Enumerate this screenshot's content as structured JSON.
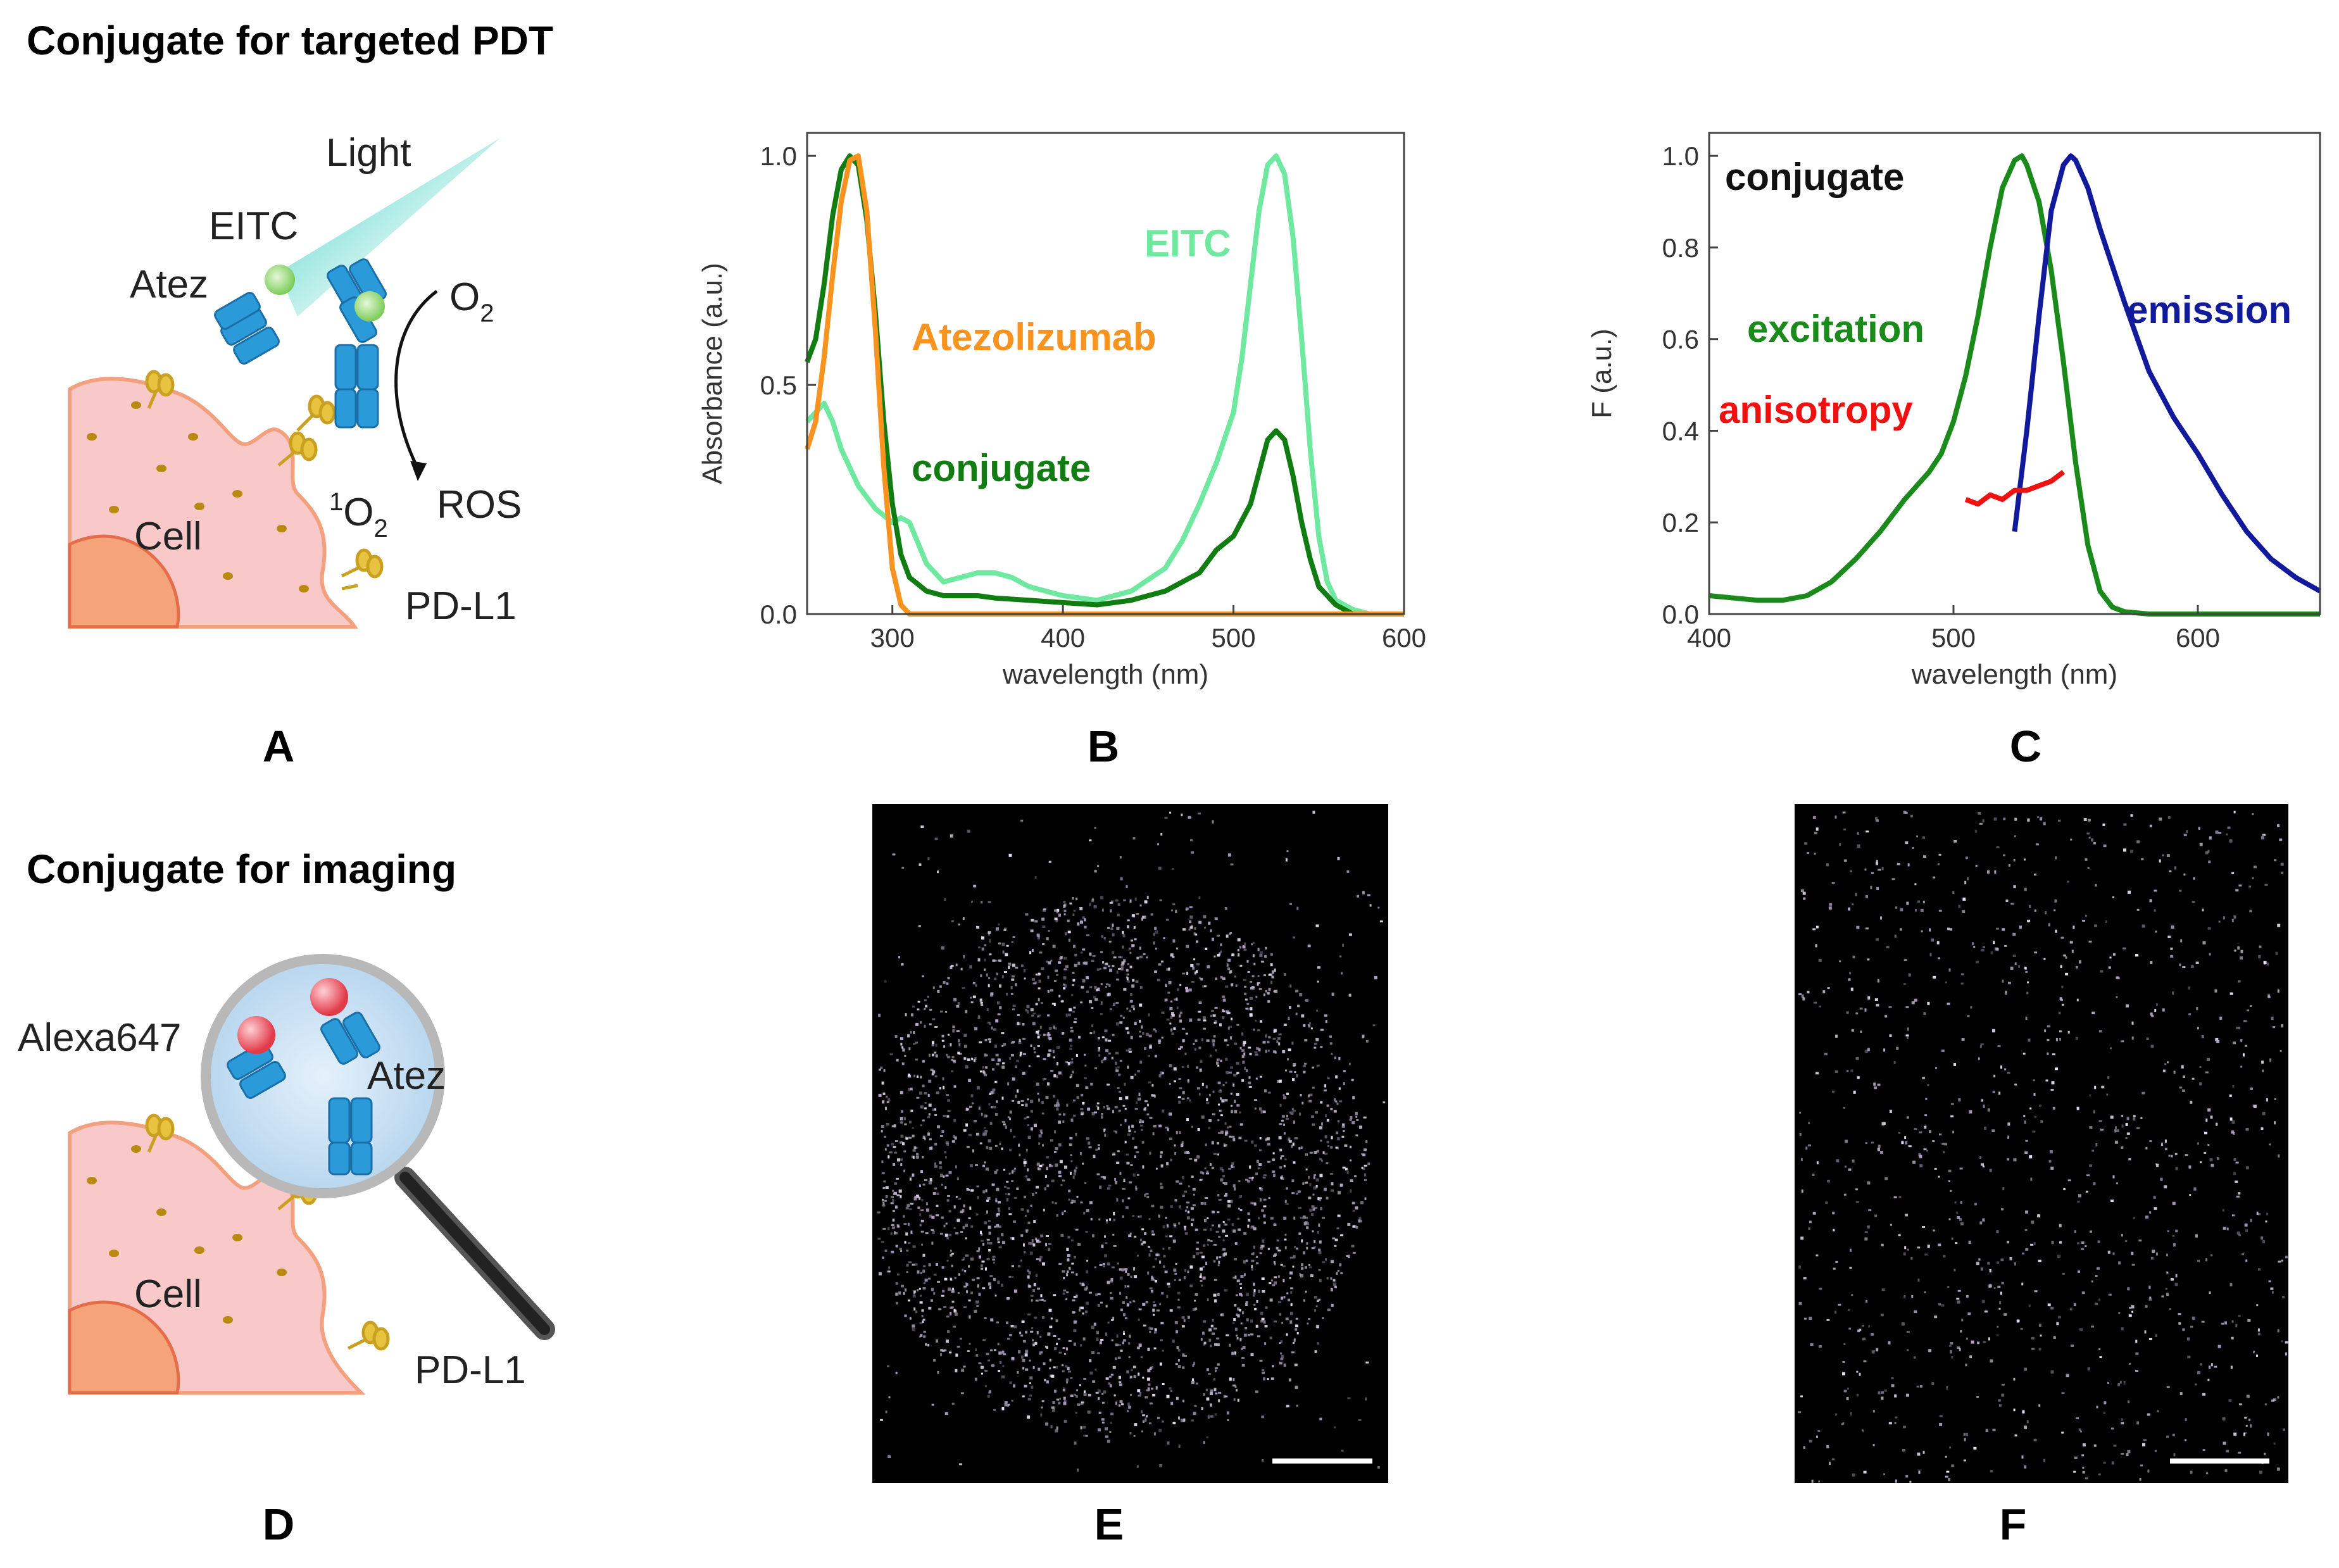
{
  "headings": {
    "top": "Conjugate for targeted PDT",
    "bottom": "Conjugate for imaging"
  },
  "panel_letters": {
    "A": "A",
    "B": "B",
    "C": "C",
    "D": "D",
    "E": "E",
    "F": "F"
  },
  "schematic_a": {
    "light": "Light",
    "eitc": "EITC",
    "atez": "Atez",
    "o2": "O",
    "o2_sub": "2",
    "singlet_sup": "1",
    "singlet_o": "O",
    "singlet_sub": "2",
    "ros": "ROS",
    "cell": "Cell",
    "pdl1": "PD-L1"
  },
  "schematic_d": {
    "alexa": "Alexa647",
    "atez": "Atez",
    "cell": "Cell",
    "pdl1": "PD-L1"
  },
  "colors": {
    "cell": "#f8c9c8",
    "cell_edge": "#f2a07e",
    "nucleus": "#f5a47a",
    "antibody": "#2b9ad8",
    "receptor": "#e8c340",
    "eitc_dye": "#9fdc7c",
    "alexa_dye": "#ef5a66",
    "eitc_series": "#6fe8a0",
    "conjugate_series": "#117c11",
    "atezolizumab_series": "#f7931e",
    "excitation_series": "#1a8a1a",
    "emission_series": "#101a9a",
    "anisotropy_series": "#f01010"
  },
  "chart_data": [
    {
      "type": "line",
      "panel": "B",
      "xlabel": "wavelength (nm)",
      "ylabel": "Absorbance (a.u.)",
      "xlim": [
        250,
        600
      ],
      "ylim": [
        0,
        1.05
      ],
      "xticks": [
        300,
        400,
        500,
        600
      ],
      "yticks": [
        0.0,
        0.5,
        1.0
      ],
      "xtick_labels": [
        "300",
        "400",
        "500",
        "600"
      ],
      "ytick_labels": [
        "0.0",
        "0.5",
        "1.0"
      ],
      "grid": false,
      "series": [
        {
          "name": "EITC",
          "color": "#6fe8a0",
          "x": [
            250,
            255,
            260,
            265,
            270,
            280,
            290,
            300,
            305,
            310,
            320,
            330,
            340,
            350,
            360,
            370,
            380,
            400,
            420,
            440,
            460,
            470,
            480,
            490,
            500,
            505,
            510,
            515,
            520,
            525,
            530,
            535,
            540,
            545,
            550,
            555,
            560,
            570,
            580,
            600
          ],
          "y": [
            0.42,
            0.44,
            0.46,
            0.42,
            0.36,
            0.28,
            0.23,
            0.2,
            0.21,
            0.2,
            0.11,
            0.07,
            0.08,
            0.09,
            0.09,
            0.08,
            0.06,
            0.04,
            0.03,
            0.05,
            0.1,
            0.16,
            0.24,
            0.33,
            0.44,
            0.56,
            0.72,
            0.88,
            0.98,
            1.0,
            0.96,
            0.82,
            0.6,
            0.36,
            0.17,
            0.07,
            0.03,
            0.01,
            0.0,
            0.0
          ]
        },
        {
          "name": "conjugate",
          "color": "#117c11",
          "x": [
            250,
            255,
            260,
            265,
            270,
            275,
            280,
            285,
            290,
            295,
            300,
            305,
            310,
            320,
            330,
            340,
            350,
            360,
            380,
            400,
            420,
            440,
            460,
            480,
            490,
            500,
            510,
            515,
            520,
            525,
            530,
            535,
            540,
            545,
            550,
            560,
            570,
            600
          ],
          "y": [
            0.55,
            0.6,
            0.72,
            0.87,
            0.97,
            1.0,
            0.98,
            0.86,
            0.66,
            0.42,
            0.24,
            0.13,
            0.08,
            0.05,
            0.04,
            0.04,
            0.04,
            0.035,
            0.03,
            0.025,
            0.02,
            0.03,
            0.05,
            0.09,
            0.14,
            0.17,
            0.24,
            0.31,
            0.38,
            0.4,
            0.38,
            0.3,
            0.2,
            0.12,
            0.06,
            0.02,
            0.0,
            0.0
          ]
        },
        {
          "name": "Atezolizumab",
          "color": "#f7931e",
          "x": [
            250,
            255,
            260,
            265,
            270,
            275,
            280,
            285,
            290,
            295,
            300,
            305,
            310,
            320,
            350,
            400,
            500,
            600
          ],
          "y": [
            0.36,
            0.42,
            0.56,
            0.74,
            0.9,
            0.99,
            1.0,
            0.88,
            0.62,
            0.32,
            0.1,
            0.02,
            0.0,
            0.0,
            0.0,
            0.0,
            0.0,
            0.0
          ]
        }
      ],
      "annotations": [
        "EITC",
        "Atezolizumab",
        "conjugate"
      ]
    },
    {
      "type": "line",
      "panel": "C",
      "xlabel": "wavelength (nm)",
      "ylabel": "F (a.u.)",
      "xlim": [
        400,
        650
      ],
      "ylim": [
        0,
        1.05
      ],
      "xticks": [
        400,
        500,
        600
      ],
      "yticks": [
        0.0,
        0.2,
        0.4,
        0.6,
        0.8,
        1.0
      ],
      "xtick_labels": [
        "400",
        "500",
        "600"
      ],
      "ytick_labels": [
        "0.0",
        "0.2",
        "0.4",
        "0.6",
        "0.8",
        "1.0"
      ],
      "grid": false,
      "series": [
        {
          "name": "excitation",
          "color": "#1a8a1a",
          "x": [
            400,
            410,
            420,
            430,
            440,
            450,
            460,
            470,
            480,
            490,
            495,
            500,
            505,
            510,
            515,
            520,
            525,
            528,
            530,
            535,
            540,
            545,
            550,
            555,
            560,
            565,
            570,
            580,
            600,
            650
          ],
          "y": [
            0.04,
            0.035,
            0.03,
            0.03,
            0.04,
            0.07,
            0.12,
            0.18,
            0.25,
            0.31,
            0.35,
            0.42,
            0.52,
            0.65,
            0.8,
            0.93,
            0.99,
            1.0,
            0.98,
            0.9,
            0.75,
            0.55,
            0.33,
            0.15,
            0.05,
            0.015,
            0.005,
            0.0,
            0.0,
            0.0
          ]
        },
        {
          "name": "emission",
          "color": "#101a9a",
          "x": [
            525,
            530,
            535,
            540,
            545,
            548,
            550,
            555,
            560,
            570,
            580,
            590,
            600,
            610,
            620,
            630,
            640,
            650
          ],
          "y": [
            0.18,
            0.4,
            0.65,
            0.88,
            0.98,
            1.0,
            0.99,
            0.93,
            0.84,
            0.68,
            0.53,
            0.43,
            0.35,
            0.26,
            0.18,
            0.12,
            0.08,
            0.05
          ]
        },
        {
          "name": "anisotropy",
          "color": "#f01010",
          "x": [
            505,
            510,
            515,
            520,
            525,
            530,
            535,
            540,
            545
          ],
          "y": [
            0.25,
            0.24,
            0.26,
            0.25,
            0.27,
            0.27,
            0.28,
            0.29,
            0.31
          ]
        }
      ],
      "annotations": [
        "conjugate",
        "excitation",
        "emission",
        "anisotropy"
      ]
    }
  ]
}
